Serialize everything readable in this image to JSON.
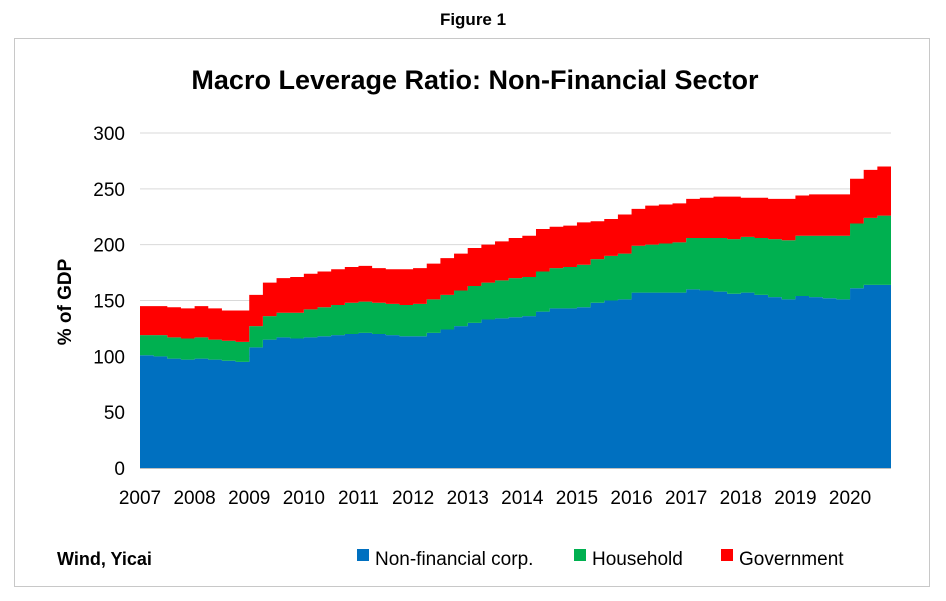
{
  "figure_label": "Figure 1",
  "source": "Wind, Yicai",
  "colors": {
    "corp": "#0070c0",
    "household": "#00b050",
    "government": "#ff0000",
    "grid": "#d9d9d9",
    "axis": "#bfbfbf"
  },
  "chart_data": {
    "type": "area",
    "stacked": true,
    "title": "Macro Leverage Ratio: Non-Financial Sector",
    "ylabel": "% of GDP",
    "xlabel": "",
    "ylim": [
      0,
      300
    ],
    "yticks": [
      0,
      50,
      100,
      150,
      200,
      250,
      300
    ],
    "year_labels": [
      "2007",
      "2008",
      "2009",
      "2010",
      "2011",
      "2012",
      "2013",
      "2014",
      "2015",
      "2016",
      "2017",
      "2018",
      "2019",
      "2020"
    ],
    "x": [
      "2007Q1",
      "2007Q2",
      "2007Q3",
      "2007Q4",
      "2008Q1",
      "2008Q2",
      "2008Q3",
      "2008Q4",
      "2009Q1",
      "2009Q2",
      "2009Q3",
      "2009Q4",
      "2010Q1",
      "2010Q2",
      "2010Q3",
      "2010Q4",
      "2011Q1",
      "2011Q2",
      "2011Q3",
      "2011Q4",
      "2012Q1",
      "2012Q2",
      "2012Q3",
      "2012Q4",
      "2013Q1",
      "2013Q2",
      "2013Q3",
      "2013Q4",
      "2014Q1",
      "2014Q2",
      "2014Q3",
      "2014Q4",
      "2015Q1",
      "2015Q2",
      "2015Q3",
      "2015Q4",
      "2016Q1",
      "2016Q2",
      "2016Q3",
      "2016Q4",
      "2017Q1",
      "2017Q2",
      "2017Q3",
      "2017Q4",
      "2018Q1",
      "2018Q2",
      "2018Q3",
      "2018Q4",
      "2019Q1",
      "2019Q2",
      "2019Q3",
      "2019Q4",
      "2020Q1",
      "2020Q2",
      "2020Q3"
    ],
    "grid": true,
    "legend_position": "bottom",
    "series": [
      {
        "name": "Non-financial corp.",
        "color_key": "corp",
        "values": [
          101,
          100,
          98,
          97,
          98,
          97,
          96,
          95,
          108,
          115,
          117,
          116,
          117,
          118,
          119,
          120,
          121,
          120,
          119,
          118,
          118,
          121,
          124,
          127,
          130,
          133,
          134,
          135,
          136,
          140,
          143,
          143,
          144,
          148,
          150,
          151,
          157,
          157,
          157,
          157,
          160,
          159,
          158,
          156,
          157,
          155,
          153,
          151,
          154,
          153,
          152,
          151,
          161,
          164,
          164
        ]
      },
      {
        "name": "Household",
        "color_key": "household",
        "values": [
          18,
          19,
          19,
          19,
          19,
          18,
          18,
          18,
          19,
          21,
          22,
          23,
          25,
          26,
          27,
          28,
          28,
          28,
          28,
          28,
          29,
          30,
          31,
          32,
          33,
          33,
          34,
          35,
          35,
          36,
          36,
          37,
          38,
          39,
          40,
          41,
          42,
          43,
          44,
          45,
          46,
          47,
          48,
          49,
          50,
          51,
          52,
          53,
          54,
          55,
          56,
          57,
          58,
          60,
          62
        ]
      },
      {
        "name": "Government",
        "color_key": "government",
        "values": [
          26,
          26,
          27,
          27,
          28,
          28,
          27,
          28,
          28,
          30,
          31,
          32,
          32,
          32,
          32,
          32,
          32,
          31,
          31,
          32,
          32,
          32,
          33,
          33,
          34,
          34,
          35,
          36,
          37,
          38,
          37,
          37,
          38,
          34,
          33,
          35,
          33,
          35,
          35,
          35,
          35,
          36,
          37,
          38,
          35,
          36,
          36,
          37,
          36,
          37,
          37,
          37,
          40,
          43,
          44
        ]
      }
    ]
  }
}
